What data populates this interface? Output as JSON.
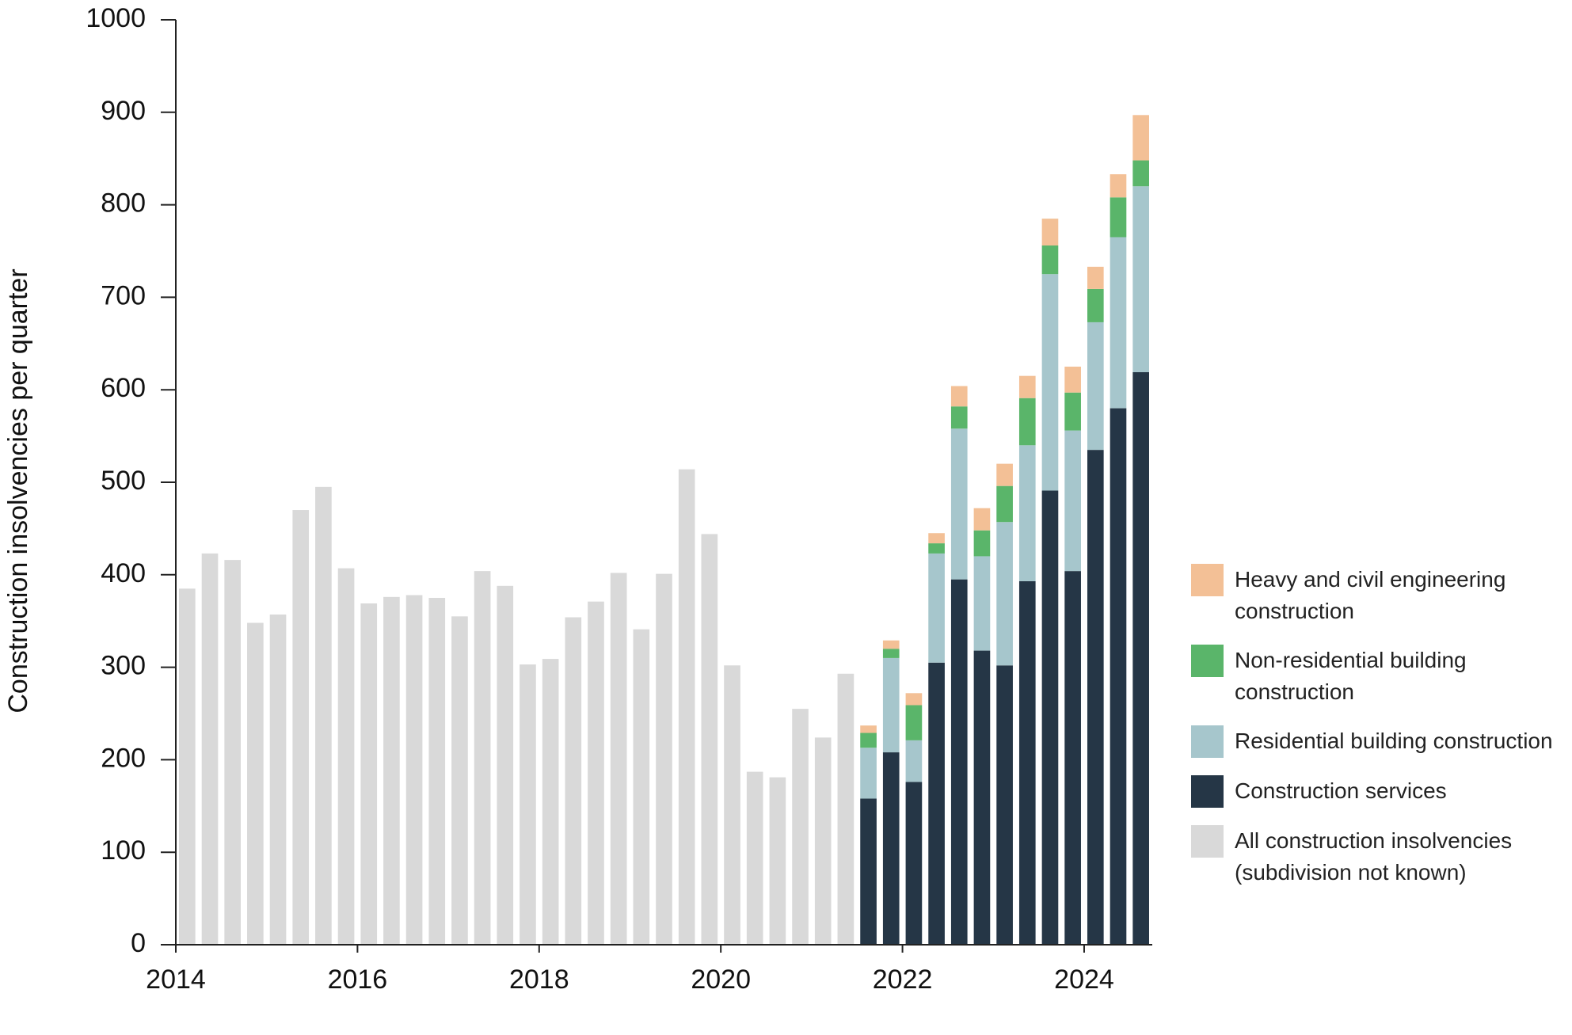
{
  "chart_data": {
    "type": "stacked_bar",
    "y_label": "Construction insolvencies per quarter",
    "categories": [
      "2014",
      null,
      null,
      null,
      null,
      null,
      null,
      null,
      "2016",
      null,
      null,
      null,
      null,
      null,
      null,
      null,
      "2018",
      null,
      null,
      null,
      null,
      null,
      null,
      null,
      "2020",
      null,
      null,
      null,
      null,
      null,
      null,
      null,
      "2022",
      null,
      null,
      null,
      null,
      null,
      null,
      null,
      "2024",
      null,
      null
    ],
    "series": [
      {
        "name": "All construction insolvencies (subdivision not known)",
        "color": "#d9d9d9",
        "values": [
          385,
          423,
          416,
          348,
          357,
          470,
          495,
          407,
          369,
          376,
          378,
          375,
          355,
          404,
          388,
          303,
          309,
          354,
          371,
          402,
          341,
          401,
          514,
          444,
          302,
          187,
          181,
          255,
          224,
          293,
          null,
          null,
          null,
          null,
          null,
          null,
          null,
          null,
          null,
          null,
          null,
          null,
          null
        ]
      },
      {
        "name": "Construction services",
        "color": "#253646",
        "values": [
          null,
          null,
          null,
          null,
          null,
          null,
          null,
          null,
          null,
          null,
          null,
          null,
          null,
          null,
          null,
          null,
          null,
          null,
          null,
          null,
          null,
          null,
          null,
          null,
          null,
          null,
          null,
          null,
          null,
          null,
          158,
          208,
          176,
          305,
          395,
          318,
          302,
          393,
          491,
          404,
          535,
          580,
          619
        ]
      },
      {
        "name": "Residential building construction",
        "color": "#a6c6cc",
        "values": [
          null,
          null,
          null,
          null,
          null,
          null,
          null,
          null,
          null,
          null,
          null,
          null,
          null,
          null,
          null,
          null,
          null,
          null,
          null,
          null,
          null,
          null,
          null,
          null,
          null,
          null,
          null,
          null,
          null,
          null,
          55,
          102,
          45,
          118,
          163,
          102,
          155,
          147,
          234,
          152,
          138,
          185,
          201
        ]
      },
      {
        "name": "Non-residential building construction",
        "color": "#5ab56a",
        "values": [
          null,
          null,
          null,
          null,
          null,
          null,
          null,
          null,
          null,
          null,
          null,
          null,
          null,
          null,
          null,
          null,
          null,
          null,
          null,
          null,
          null,
          null,
          null,
          null,
          null,
          null,
          null,
          null,
          null,
          null,
          16,
          10,
          38,
          11,
          24,
          28,
          39,
          51,
          31,
          41,
          36,
          43,
          28
        ]
      },
      {
        "name": "Heavy and civil engineering construction",
        "color": "#f3c096",
        "values": [
          null,
          null,
          null,
          null,
          null,
          null,
          null,
          null,
          null,
          null,
          null,
          null,
          null,
          null,
          null,
          null,
          null,
          null,
          null,
          null,
          null,
          null,
          null,
          null,
          null,
          null,
          null,
          null,
          null,
          null,
          8,
          9,
          13,
          11,
          22,
          24,
          24,
          24,
          29,
          28,
          24,
          25,
          49
        ]
      }
    ],
    "ylim": [
      0,
      1000
    ],
    "yticks": [
      0,
      100,
      200,
      300,
      400,
      500,
      600,
      700,
      800,
      900,
      1000
    ],
    "grid": false,
    "legend": "right"
  }
}
